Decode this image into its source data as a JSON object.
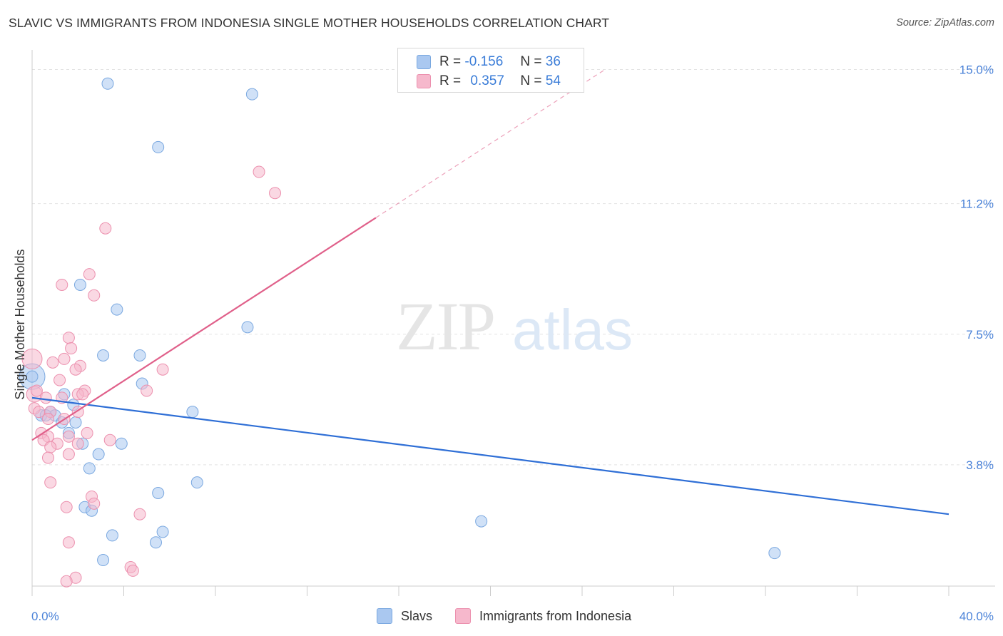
{
  "title": "SLAVIC VS IMMIGRANTS FROM INDONESIA SINGLE MOTHER HOUSEHOLDS CORRELATION CHART",
  "source": "Source: ZipAtlas.com",
  "watermark": {
    "zip": "ZIP",
    "atlas": "atlas"
  },
  "legend_stats": [
    {
      "r_label": "R =",
      "r_value": "-0.156",
      "n_label": "N =",
      "n_value": "36"
    },
    {
      "r_label": "R =",
      "r_value": "0.357",
      "n_label": "N =",
      "n_value": "54"
    }
  ],
  "chart_data": {
    "type": "scatter",
    "title": "SLAVIC VS IMMIGRANTS FROM INDONESIA SINGLE MOTHER HOUSEHOLDS CORRELATION CHART",
    "xlabel": "",
    "ylabel": "Single Mother Households",
    "xlim": [
      0,
      40
    ],
    "ylim": [
      0,
      15.5
    ],
    "x_tick_labels": [
      "0.0%",
      "40.0%"
    ],
    "y_ticks": [
      3.8,
      7.5,
      11.2,
      15.0
    ],
    "y_tick_labels": [
      "3.8%",
      "7.5%",
      "11.2%",
      "15.0%"
    ],
    "grid": true,
    "legend_placement": "bottom",
    "series": [
      {
        "name": "Slavs",
        "color": "#aac8f0",
        "stroke": "#7aa8e0",
        "trend_color": "#2f6fd6",
        "trend": {
          "x0": 0,
          "y0": 5.7,
          "x1": 40,
          "y1": 2.4
        },
        "points": [
          [
            3.3,
            14.6
          ],
          [
            9.6,
            14.3
          ],
          [
            5.5,
            12.8
          ],
          [
            2.1,
            8.9
          ],
          [
            3.7,
            8.2
          ],
          [
            9.4,
            7.7
          ],
          [
            3.1,
            6.9
          ],
          [
            4.7,
            6.9
          ],
          [
            4.8,
            6.1
          ],
          [
            0.0,
            6.3
          ],
          [
            1.4,
            5.8
          ],
          [
            1.8,
            5.5
          ],
          [
            0.4,
            5.2
          ],
          [
            0.8,
            5.3
          ],
          [
            1.0,
            5.2
          ],
          [
            0.6,
            5.2
          ],
          [
            1.3,
            5.0
          ],
          [
            1.9,
            5.0
          ],
          [
            7.0,
            5.3
          ],
          [
            1.6,
            4.7
          ],
          [
            2.2,
            4.4
          ],
          [
            3.9,
            4.4
          ],
          [
            2.9,
            4.1
          ],
          [
            2.5,
            3.7
          ],
          [
            7.2,
            3.3
          ],
          [
            5.5,
            3.0
          ],
          [
            2.3,
            2.6
          ],
          [
            2.6,
            2.5
          ],
          [
            19.6,
            2.2
          ],
          [
            3.5,
            1.8
          ],
          [
            5.7,
            1.9
          ],
          [
            5.4,
            1.6
          ],
          [
            3.1,
            1.1
          ],
          [
            32.4,
            1.3
          ]
        ],
        "large_points": [
          [
            0.0,
            6.3,
            18
          ]
        ]
      },
      {
        "name": "Immigrants from Indonesia",
        "color": "#f6b8cc",
        "stroke": "#ec90ae",
        "trend_color": "#e0608a",
        "trend": {
          "x0": 0,
          "y0": 4.5,
          "x1": 15,
          "y1": 10.8
        },
        "trend_dash": {
          "x0": 15,
          "y0": 10.8,
          "x1": 25,
          "y1": 15.0
        },
        "points": [
          [
            9.9,
            12.1
          ],
          [
            10.6,
            11.5
          ],
          [
            3.2,
            10.5
          ],
          [
            2.5,
            9.2
          ],
          [
            1.3,
            8.9
          ],
          [
            2.7,
            8.6
          ],
          [
            1.6,
            7.4
          ],
          [
            1.7,
            7.1
          ],
          [
            1.4,
            6.8
          ],
          [
            0.9,
            6.7
          ],
          [
            2.1,
            6.6
          ],
          [
            5.7,
            6.5
          ],
          [
            1.9,
            6.5
          ],
          [
            1.2,
            6.2
          ],
          [
            0.2,
            5.9
          ],
          [
            2.3,
            5.9
          ],
          [
            2.0,
            5.8
          ],
          [
            2.2,
            5.8
          ],
          [
            5.0,
            5.9
          ],
          [
            1.3,
            5.7
          ],
          [
            0.6,
            5.7
          ],
          [
            0.1,
            5.4
          ],
          [
            0.3,
            5.3
          ],
          [
            2.0,
            5.3
          ],
          [
            0.8,
            5.3
          ],
          [
            1.4,
            5.1
          ],
          [
            0.7,
            5.1
          ],
          [
            0.4,
            4.7
          ],
          [
            0.7,
            4.6
          ],
          [
            1.6,
            4.6
          ],
          [
            2.4,
            4.7
          ],
          [
            3.4,
            4.5
          ],
          [
            0.5,
            4.5
          ],
          [
            1.1,
            4.4
          ],
          [
            2.0,
            4.4
          ],
          [
            0.8,
            4.3
          ],
          [
            1.6,
            4.1
          ],
          [
            0.7,
            4.0
          ],
          [
            0.8,
            3.3
          ],
          [
            2.6,
            2.9
          ],
          [
            2.7,
            2.7
          ],
          [
            1.5,
            2.6
          ],
          [
            4.7,
            2.4
          ],
          [
            1.6,
            1.6
          ],
          [
            4.3,
            0.9
          ],
          [
            4.4,
            0.8
          ],
          [
            1.9,
            0.6
          ],
          [
            1.5,
            0.5
          ]
        ],
        "large_points": [
          [
            0.0,
            6.8,
            14
          ],
          [
            0.1,
            5.8,
            11
          ]
        ]
      }
    ]
  }
}
